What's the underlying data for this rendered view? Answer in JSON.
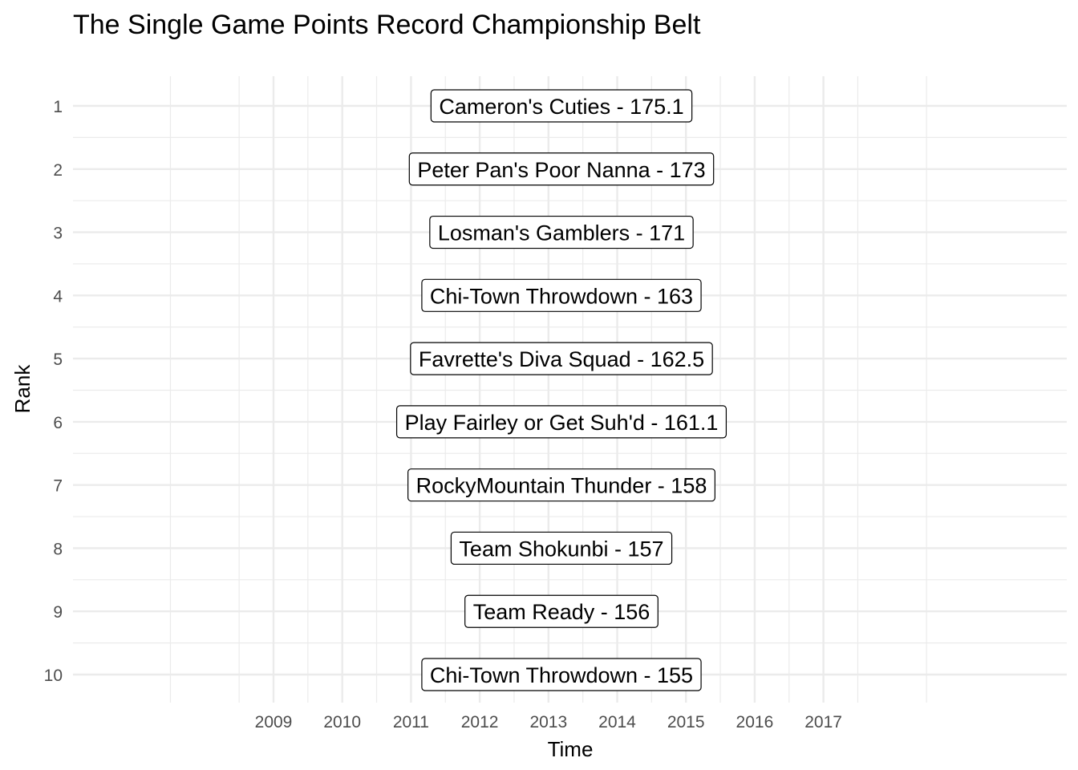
{
  "chart_data": {
    "type": "scatter",
    "title": "The Single Game Points Record Championship Belt",
    "xlabel": "Time",
    "ylabel": "Rank",
    "x_ticks": [
      "2009",
      "2010",
      "2011",
      "2012",
      "2013",
      "2014",
      "2015",
      "2016",
      "2017"
    ],
    "y_ticks": [
      "1",
      "2",
      "3",
      "4",
      "5",
      "6",
      "7",
      "8",
      "9",
      "10"
    ],
    "y_reversed": true,
    "grid": true,
    "legend": "none",
    "labels": [
      {
        "rank": 1,
        "team": "Cameron's Cuties",
        "points": 175.1,
        "text": "Cameron's Cuties - 175.1"
      },
      {
        "rank": 2,
        "team": "Peter Pan's Poor Nanna",
        "points": 173,
        "text": "Peter Pan's Poor Nanna - 173"
      },
      {
        "rank": 3,
        "team": "Losman's Gamblers",
        "points": 171,
        "text": "Losman's Gamblers - 171"
      },
      {
        "rank": 4,
        "team": "Chi-Town Throwdown",
        "points": 163,
        "text": "Chi-Town Throwdown - 163"
      },
      {
        "rank": 5,
        "team": "Favrette's Diva Squad",
        "points": 162.5,
        "text": "Favrette's Diva Squad - 162.5"
      },
      {
        "rank": 6,
        "team": "Play Fairley or Get Suh'd",
        "points": 161.1,
        "text": "Play Fairley or Get Suh'd - 161.1"
      },
      {
        "rank": 7,
        "team": "RockyMountain Thunder",
        "points": 158,
        "text": "RockyMountain Thunder - 158"
      },
      {
        "rank": 8,
        "team": "Team Shokunbi",
        "points": 157,
        "text": "Team Shokunbi - 157"
      },
      {
        "rank": 9,
        "team": "Team Ready",
        "points": 156,
        "text": "Team Ready - 156"
      },
      {
        "rank": 10,
        "team": "Chi-Town Throwdown",
        "points": 155,
        "text": "Chi-Town Throwdown - 155"
      }
    ]
  }
}
